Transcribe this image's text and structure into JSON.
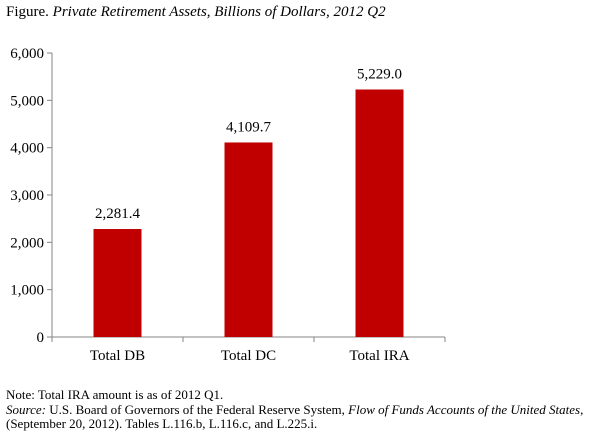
{
  "figure": {
    "prefix": "Figure.",
    "title": "Private Retirement Assets, Billions of Dollars, 2012 Q2"
  },
  "chart_data": {
    "type": "bar",
    "title": "Private Retirement Assets, Billions of Dollars, 2012 Q2",
    "categories": [
      "Total DB",
      "Total DC",
      "Total IRA"
    ],
    "values": [
      2281.4,
      4109.7,
      5229.0
    ],
    "value_labels": [
      "2,281.4",
      "4,109.7",
      "5,229.0"
    ],
    "ylim": [
      0,
      6000
    ],
    "yticks": [
      0,
      1000,
      2000,
      3000,
      4000,
      5000,
      6000
    ],
    "ytick_labels": [
      "0",
      "1,000",
      "2,000",
      "3,000",
      "4,000",
      "5,000",
      "6,000"
    ],
    "xlabel": "",
    "ylabel": "",
    "bar_color": "#c00000",
    "grid": false,
    "legend": "none"
  },
  "notes": {
    "note": "Note: Total IRA amount is as of 2012 Q1.",
    "source_label": "Source:",
    "source_text_1": " U.S. Board of Governors of the Federal Reserve System, ",
    "source_italic": "Flow of Funds Accounts of the United States",
    "source_text_2": ", (September 20, 2012). Tables L.116.b, L.116.c, and L.225.i."
  }
}
